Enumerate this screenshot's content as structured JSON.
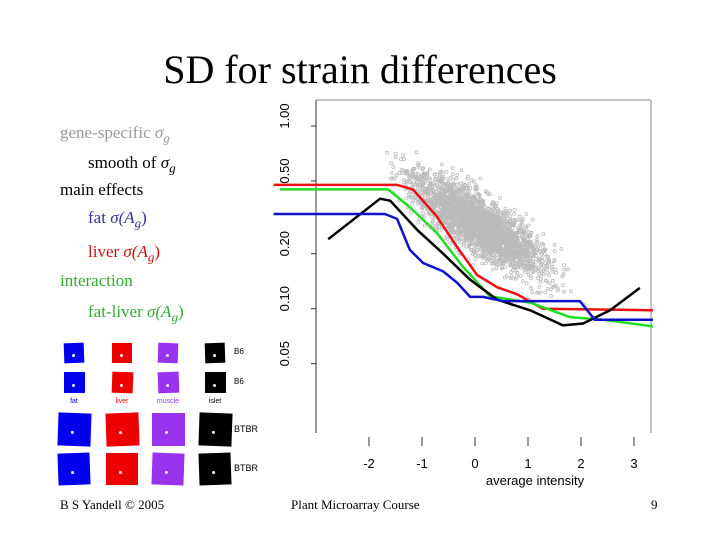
{
  "slide": {
    "title": "SD for strain differences",
    "legend_text": [
      {
        "prefix": "gene-specific ",
        "symbol": "σ",
        "sub": "g",
        "color": "#999999"
      },
      {
        "prefix": "smooth of ",
        "symbol": "σ",
        "sub": "g",
        "color": "#000000"
      },
      {
        "prefix": "main effects",
        "color": "#000000"
      },
      {
        "prefix": "fat ",
        "symbol": "σ(A",
        "sub": "g",
        "suffix": ")",
        "color": "#333399"
      },
      {
        "prefix": "liver ",
        "symbol": "σ(A",
        "sub": "g",
        "suffix": ")",
        "color": "#cc1111"
      },
      {
        "prefix": "interaction",
        "color": "#33aa33"
      },
      {
        "prefix": "fat-liver ",
        "symbol": "σ(A",
        "sub": "g",
        "suffix": ")",
        "color": "#33aa33"
      }
    ],
    "footer": {
      "left": "B S Yandell © 2005",
      "center": "Plant Microarray Course",
      "page": "9"
    }
  },
  "tissue_panel": {
    "columns": [
      {
        "label": "fat",
        "color": "#0000ee"
      },
      {
        "label": "liver",
        "color": "#ee0000"
      },
      {
        "label": "muscle",
        "color": "#9933ee"
      },
      {
        "label": "islet",
        "color": "#000000"
      }
    ],
    "rows": [
      "B6",
      "B6",
      "BTBR",
      "BTBR"
    ]
  },
  "chart_data": {
    "type": "scatter+line",
    "title": "",
    "xlabel": "average intensity",
    "ylabel": "",
    "x_ticks": [
      "-2",
      "-1",
      "0",
      "1",
      "2",
      "3"
    ],
    "y_ticks": [
      "0.05",
      "0.10",
      "0.20",
      "0.50",
      "1.00"
    ],
    "y_scale": "log",
    "xlim": [
      -3.8,
      3.4
    ],
    "ylim": [
      0.02,
      1.2
    ],
    "grid": false,
    "scatter_color": "#bbbbbb",
    "series": [
      {
        "color": "#ee1111",
        "x": [
          -3.8,
          -1.47,
          -1.17,
          -0.72,
          -0.34,
          0.04,
          0.42,
          0.79,
          1.28,
          3.36
        ],
        "y": [
          0.476,
          0.476,
          0.45,
          0.32,
          0.218,
          0.153,
          0.131,
          0.12,
          0.1,
          0.098
        ]
      },
      {
        "color": "#22dd22",
        "x": [
          -3.68,
          -1.64,
          -1.23,
          -0.72,
          -0.23,
          0.28,
          1.04,
          1.79,
          2.42,
          3.36
        ],
        "y": [
          0.45,
          0.45,
          0.36,
          0.26,
          0.17,
          0.117,
          0.108,
          0.09,
          0.087,
          0.08
        ]
      },
      {
        "color": "#000000",
        "x": [
          -2.77,
          -1.79,
          -1.6,
          -1.09,
          -0.6,
          -0.09,
          0.42,
          1.04,
          1.66,
          2.04,
          2.55,
          3.11
        ],
        "y": [
          0.24,
          0.4,
          0.39,
          0.27,
          0.2,
          0.144,
          0.112,
          0.098,
          0.081,
          0.083,
          0.098,
          0.13
        ]
      },
      {
        "color": "#1111cc",
        "x": [
          -3.8,
          -1.7,
          -1.47,
          -1.23,
          -0.98,
          -0.6,
          -0.34,
          -0.09,
          0.15,
          0.53,
          1.98,
          2.26,
          3.36
        ],
        "y": [
          0.33,
          0.33,
          0.31,
          0.21,
          0.178,
          0.16,
          0.139,
          0.116,
          0.116,
          0.11,
          0.11,
          0.087,
          0.087
        ]
      }
    ]
  }
}
